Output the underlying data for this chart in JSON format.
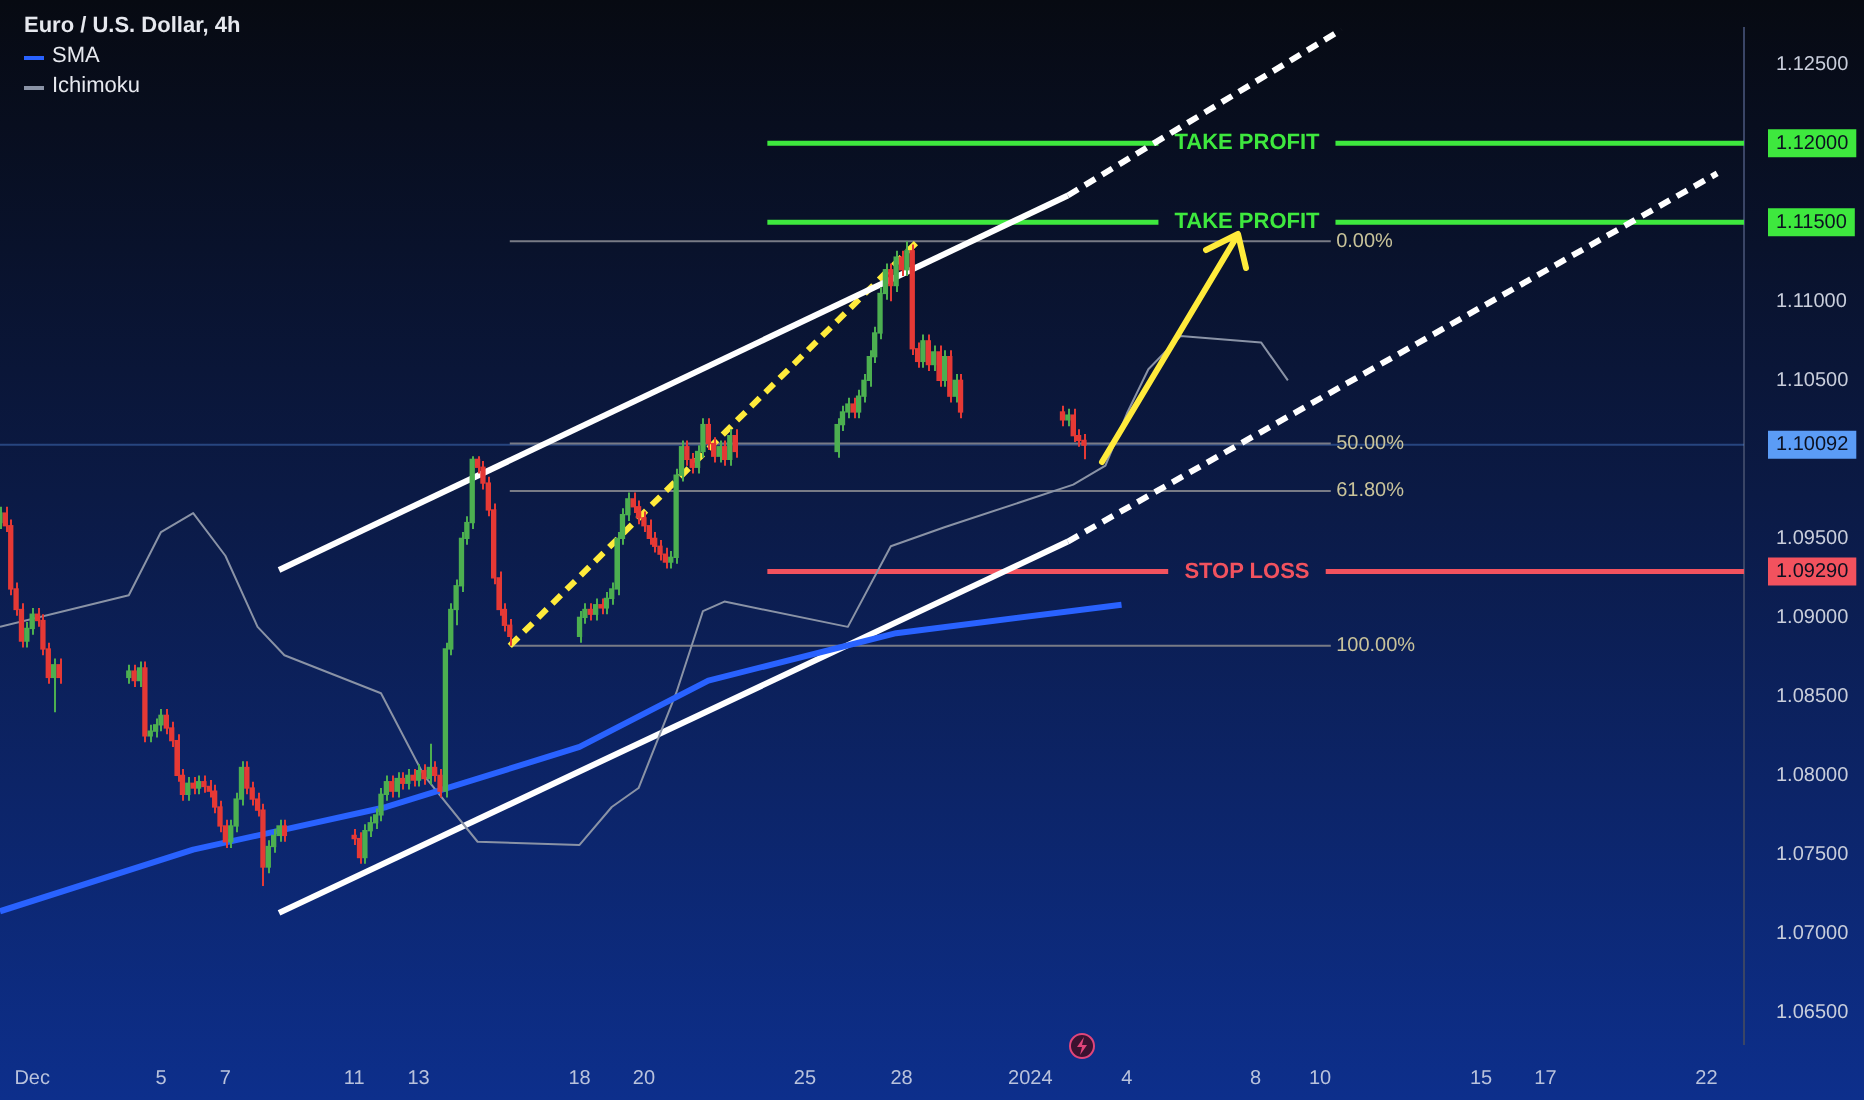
{
  "chart_data": {
    "type": "candlestick",
    "title": "Euro / U.S. Dollar, 4h",
    "legend": "top left",
    "x": [
      "2023-11-30T00:00",
      "2023-11-30T04:00",
      "2023-11-30T08:00",
      "2023-11-30T12:00",
      "2023-11-30T16:00",
      "2023-11-30T20:00",
      "2023-12-01T00:00",
      "2023-12-01T04:00",
      "2023-12-01T08:00",
      "2023-12-01T12:00",
      "2023-12-01T16:00",
      "2023-12-01T20:00",
      "2023-12-04T00:00",
      "2023-12-04T04:00",
      "2023-12-04T08:00",
      "2023-12-04T12:00",
      "2023-12-04T16:00",
      "2023-12-04T20:00",
      "2023-12-05T00:00",
      "2023-12-05T04:00",
      "2023-12-05T08:00",
      "2023-12-05T12:00",
      "2023-12-05T16:00",
      "2023-12-05T20:00",
      "2023-12-06T00:00",
      "2023-12-06T04:00",
      "2023-12-06T08:00",
      "2023-12-06T12:00",
      "2023-12-06T16:00",
      "2023-12-06T20:00",
      "2023-12-07T00:00",
      "2023-12-07T04:00",
      "2023-12-07T08:00",
      "2023-12-07T12:00",
      "2023-12-07T16:00",
      "2023-12-07T20:00",
      "2023-12-08T00:00",
      "2023-12-08T04:00",
      "2023-12-08T08:00",
      "2023-12-08T12:00",
      "2023-12-08T16:00",
      "2023-12-08T20:00",
      "2023-12-11T00:00",
      "2023-12-11T04:00",
      "2023-12-11T08:00",
      "2023-12-11T12:00",
      "2023-12-11T16:00",
      "2023-12-11T20:00",
      "2023-12-12T00:00",
      "2023-12-12T04:00",
      "2023-12-12T08:00",
      "2023-12-12T12:00",
      "2023-12-12T16:00",
      "2023-12-12T20:00",
      "2023-12-13T00:00",
      "2023-12-13T04:00",
      "2023-12-13T08:00",
      "2023-12-13T12:00",
      "2023-12-13T16:00",
      "2023-12-13T20:00",
      "2023-12-14T00:00",
      "2023-12-14T04:00",
      "2023-12-14T08:00",
      "2023-12-14T12:00",
      "2023-12-14T16:00",
      "2023-12-14T20:00",
      "2023-12-15T00:00",
      "2023-12-15T04:00",
      "2023-12-15T08:00",
      "2023-12-15T12:00",
      "2023-12-15T16:00",
      "2023-12-15T20:00",
      "2023-12-18T00:00",
      "2023-12-18T04:00",
      "2023-12-18T08:00",
      "2023-12-18T12:00",
      "2023-12-18T16:00",
      "2023-12-18T20:00",
      "2023-12-19T00:00",
      "2023-12-19T04:00",
      "2023-12-19T08:00",
      "2023-12-19T12:00",
      "2023-12-19T16:00",
      "2023-12-19T20:00",
      "2023-12-20T00:00",
      "2023-12-20T04:00",
      "2023-12-20T08:00",
      "2023-12-20T12:00",
      "2023-12-20T16:00",
      "2023-12-20T20:00",
      "2023-12-21T00:00",
      "2023-12-21T04:00",
      "2023-12-21T08:00",
      "2023-12-21T12:00",
      "2023-12-21T16:00",
      "2023-12-21T20:00",
      "2023-12-22T00:00",
      "2023-12-22T04:00",
      "2023-12-22T08:00",
      "2023-12-22T12:00",
      "2023-12-22T16:00",
      "2023-12-22T20:00",
      "2023-12-26T00:00",
      "2023-12-26T04:00",
      "2023-12-26T08:00",
      "2023-12-26T12:00",
      "2023-12-26T16:00",
      "2023-12-26T20:00",
      "2023-12-27T00:00",
      "2023-12-27T04:00",
      "2023-12-27T08:00",
      "2023-12-27T12:00",
      "2023-12-27T16:00",
      "2023-12-27T20:00",
      "2023-12-28T00:00",
      "2023-12-28T04:00",
      "2023-12-28T08:00",
      "2023-12-28T12:00",
      "2023-12-28T16:00",
      "2023-12-28T20:00",
      "2023-12-29T00:00",
      "2023-12-29T04:00",
      "2023-12-29T08:00",
      "2023-12-29T12:00",
      "2023-12-29T16:00",
      "2023-12-29T20:00",
      "2024-01-02T00:00",
      "2024-01-02T04:00",
      "2024-01-02T08:00",
      "2024-01-02T12:00",
      "2024-01-02T16:00"
    ],
    "ohlc": [
      [
        1.096,
        1.097,
        1.0956,
        1.0966
      ],
      [
        1.0966,
        1.097,
        1.0954,
        1.0958
      ],
      [
        1.0958,
        1.0962,
        1.0914,
        1.0918
      ],
      [
        1.0918,
        1.0922,
        1.0901,
        1.0905
      ],
      [
        1.0905,
        1.0909,
        1.0881,
        1.0885
      ],
      [
        1.0885,
        1.0897,
        1.0881,
        1.0893
      ],
      [
        1.0893,
        1.0906,
        1.0889,
        1.0902
      ],
      [
        1.0902,
        1.0906,
        1.0894,
        1.0898
      ],
      [
        1.0898,
        1.0902,
        1.0876,
        1.088
      ],
      [
        1.088,
        1.0884,
        1.0858,
        1.0862
      ],
      [
        1.0862,
        1.0874,
        1.084,
        1.087
      ],
      [
        1.087,
        1.0874,
        1.0858,
        1.0862
      ],
      [
        1.0862,
        1.087,
        1.0858,
        1.0866
      ],
      [
        1.0866,
        1.087,
        1.0856,
        1.086
      ],
      [
        1.086,
        1.0872,
        1.0856,
        1.0868
      ],
      [
        1.0868,
        1.0872,
        1.0821,
        1.0825
      ],
      [
        1.0825,
        1.0832,
        1.0821,
        1.0828
      ],
      [
        1.0828,
        1.0836,
        1.0824,
        1.0832
      ],
      [
        1.0832,
        1.0842,
        1.0828,
        1.0838
      ],
      [
        1.0838,
        1.0842,
        1.0826,
        1.083
      ],
      [
        1.083,
        1.0834,
        1.0818,
        1.0822
      ],
      [
        1.0822,
        1.0826,
        1.0796,
        1.08
      ],
      [
        1.08,
        1.0804,
        1.0784,
        1.0788
      ],
      [
        1.0788,
        1.0799,
        1.0784,
        1.0795
      ],
      [
        1.0795,
        1.0799,
        1.0788,
        1.0792
      ],
      [
        1.0792,
        1.08,
        1.0788,
        1.0796
      ],
      [
        1.0796,
        1.08,
        1.0789,
        1.0793
      ],
      [
        1.0793,
        1.0797,
        1.0786,
        1.079
      ],
      [
        1.079,
        1.0794,
        1.0776,
        1.078
      ],
      [
        1.078,
        1.0784,
        1.0764,
        1.0768
      ],
      [
        1.0768,
        1.0772,
        1.0754,
        1.0758
      ],
      [
        1.0758,
        1.0772,
        1.0754,
        1.0768
      ],
      [
        1.0768,
        1.0789,
        1.0764,
        1.0785
      ],
      [
        1.0785,
        1.0809,
        1.0781,
        1.0805
      ],
      [
        1.0805,
        1.0809,
        1.0788,
        1.0792
      ],
      [
        1.0792,
        1.0796,
        1.0781,
        1.0785
      ],
      [
        1.0785,
        1.0789,
        1.0774,
        1.0778
      ],
      [
        1.0778,
        1.0782,
        1.073,
        1.0742
      ],
      [
        1.0742,
        1.0759,
        1.0738,
        1.0755
      ],
      [
        1.0755,
        1.0766,
        1.0751,
        1.0762
      ],
      [
        1.0762,
        1.0772,
        1.0758,
        1.0768
      ],
      [
        1.0768,
        1.0772,
        1.0758,
        1.0762
      ],
      [
        1.0762,
        1.0766,
        1.0756,
        1.076
      ],
      [
        1.076,
        1.0764,
        1.0744,
        1.0748
      ],
      [
        1.0748,
        1.0769,
        1.0744,
        1.0765
      ],
      [
        1.0765,
        1.0774,
        1.0761,
        1.077
      ],
      [
        1.077,
        1.0779,
        1.0766,
        1.0775
      ],
      [
        1.0775,
        1.0792,
        1.0771,
        1.0788
      ],
      [
        1.0788,
        1.08,
        1.0784,
        1.0796
      ],
      [
        1.0796,
        1.08,
        1.0786,
        1.079
      ],
      [
        1.079,
        1.0802,
        1.0786,
        1.0798
      ],
      [
        1.0798,
        1.0802,
        1.0791,
        1.0795
      ],
      [
        1.0795,
        1.0804,
        1.0791,
        1.08
      ],
      [
        1.08,
        1.0804,
        1.0793,
        1.0797
      ],
      [
        1.0797,
        1.0807,
        1.0793,
        1.0803
      ],
      [
        1.0803,
        1.0807,
        1.0794,
        1.0798
      ],
      [
        1.0798,
        1.082,
        1.0794,
        1.0805
      ],
      [
        1.0805,
        1.0809,
        1.0796,
        1.08
      ],
      [
        1.08,
        1.0804,
        1.0786,
        1.079
      ],
      [
        1.079,
        1.0884,
        1.0786,
        1.088
      ],
      [
        1.088,
        1.0909,
        1.0876,
        1.0905
      ],
      [
        1.0905,
        1.0924,
        1.0895,
        1.092
      ],
      [
        1.092,
        1.0954,
        1.0916,
        1.095
      ],
      [
        1.095,
        1.0964,
        1.0946,
        1.096
      ],
      [
        1.096,
        1.1002,
        1.0956,
        1.1
      ],
      [
        1.1,
        1.1002,
        1.0991,
        1.0995
      ],
      [
        1.0995,
        1.0999,
        1.0981,
        1.0985
      ],
      [
        1.0985,
        1.0989,
        1.0964,
        1.0968
      ],
      [
        1.0968,
        1.0972,
        1.0921,
        1.0925
      ],
      [
        1.0925,
        1.0929,
        1.0901,
        1.0905
      ],
      [
        1.0905,
        1.0909,
        1.0891,
        1.0895
      ],
      [
        1.0895,
        1.0899,
        1.0882,
        1.0888
      ],
      [
        1.0888,
        1.0904,
        1.0884,
        1.09
      ],
      [
        1.09,
        1.0909,
        1.0896,
        1.0905
      ],
      [
        1.0905,
        1.0909,
        1.0898,
        1.0902
      ],
      [
        1.0902,
        1.0912,
        1.0898,
        1.0908
      ],
      [
        1.0908,
        1.0912,
        1.0902,
        1.0906
      ],
      [
        1.0906,
        1.0916,
        1.0902,
        1.0912
      ],
      [
        1.0912,
        1.0922,
        1.0908,
        1.0918
      ],
      [
        1.0918,
        1.0954,
        1.0914,
        1.095
      ],
      [
        1.095,
        1.0969,
        1.0946,
        1.0965
      ],
      [
        1.0965,
        1.0979,
        1.0961,
        1.0975
      ],
      [
        1.0975,
        1.0979,
        1.0966,
        1.097
      ],
      [
        1.097,
        1.0974,
        1.0959,
        1.0963
      ],
      [
        1.0963,
        1.0967,
        1.0954,
        1.0958
      ],
      [
        1.0958,
        1.0962,
        1.0946,
        1.095
      ],
      [
        1.095,
        1.0954,
        1.0941,
        1.0945
      ],
      [
        1.0945,
        1.0949,
        1.0936,
        1.094
      ],
      [
        1.094,
        1.0944,
        1.0931,
        1.0935
      ],
      [
        1.0935,
        1.0942,
        1.0931,
        1.0938
      ],
      [
        1.0938,
        1.0994,
        1.0934,
        1.099
      ],
      [
        1.099,
        1.1012,
        1.0986,
        1.1008
      ],
      [
        1.1008,
        1.1012,
        1.0996,
        1.1
      ],
      [
        1.1,
        1.1004,
        1.0991,
        1.0995
      ],
      [
        1.0995,
        1.1009,
        1.0991,
        1.1005
      ],
      [
        1.1005,
        1.1026,
        1.1001,
        1.1022
      ],
      [
        1.1022,
        1.1026,
        1.1006,
        1.101
      ],
      [
        1.101,
        1.1014,
        1.0998,
        1.1002
      ],
      [
        1.1002,
        1.1012,
        1.0998,
        1.1008
      ],
      [
        1.1008,
        1.1012,
        1.0996,
        1.1
      ],
      [
        1.1,
        1.1019,
        1.0996,
        1.1015
      ],
      [
        1.1015,
        1.1019,
        1.1001,
        1.1005
      ],
      [
        1.1005,
        1.1026,
        1.1001,
        1.1022
      ],
      [
        1.1022,
        1.1034,
        1.1018,
        1.103
      ],
      [
        1.103,
        1.1039,
        1.1026,
        1.1035
      ],
      [
        1.1035,
        1.1039,
        1.1026,
        1.103
      ],
      [
        1.103,
        1.1044,
        1.1026,
        1.104
      ],
      [
        1.104,
        1.1054,
        1.1036,
        1.105
      ],
      [
        1.105,
        1.1069,
        1.1046,
        1.1065
      ],
      [
        1.1065,
        1.1084,
        1.1061,
        1.108
      ],
      [
        1.108,
        1.1109,
        1.1076,
        1.1105
      ],
      [
        1.1105,
        1.1124,
        1.1101,
        1.112
      ],
      [
        1.112,
        1.1124,
        1.11,
        1.111
      ],
      [
        1.111,
        1.1132,
        1.1106,
        1.1128
      ],
      [
        1.1128,
        1.1132,
        1.1116,
        1.112
      ],
      [
        1.112,
        1.1138,
        1.1116,
        1.1132
      ],
      [
        1.1132,
        1.1136,
        1.1066,
        1.107
      ],
      [
        1.107,
        1.1074,
        1.1058,
        1.1062
      ],
      [
        1.1062,
        1.1079,
        1.1058,
        1.1075
      ],
      [
        1.1075,
        1.1079,
        1.1056,
        1.106
      ],
      [
        1.106,
        1.1072,
        1.1056,
        1.1068
      ],
      [
        1.1068,
        1.1072,
        1.1046,
        1.105
      ],
      [
        1.105,
        1.1069,
        1.1046,
        1.1065
      ],
      [
        1.1065,
        1.1069,
        1.1036,
        1.104
      ],
      [
        1.104,
        1.1054,
        1.1036,
        1.105
      ],
      [
        1.105,
        1.1054,
        1.1026,
        1.103
      ],
      [
        1.103,
        1.1034,
        1.1021,
        1.1025
      ],
      [
        1.1025,
        1.1032,
        1.1021,
        1.1028
      ],
      [
        1.1028,
        1.1032,
        1.1011,
        1.1015
      ],
      [
        1.1015,
        1.1019,
        1.1008,
        1.1012
      ],
      [
        1.1012,
        1.1016,
        1.1,
        1.1009
      ]
    ],
    "colors": [
      "#4caf50",
      "#e53935",
      "#e53935",
      "#e53935",
      "#e53935",
      "#4caf50",
      "#4caf50",
      "#e53935",
      "#e53935",
      "#e53935",
      "#4caf50",
      "#e53935",
      "#4caf50",
      "#e53935",
      "#4caf50",
      "#e53935",
      "#4caf50",
      "#4caf50",
      "#4caf50",
      "#e53935",
      "#e53935",
      "#e53935",
      "#e53935",
      "#4caf50",
      "#e53935",
      "#4caf50",
      "#e53935",
      "#e53935",
      "#e53935",
      "#e53935",
      "#e53935",
      "#4caf50",
      "#4caf50",
      "#4caf50",
      "#e53935",
      "#e53935",
      "#e53935",
      "#e53935",
      "#4caf50",
      "#4caf50",
      "#4caf50",
      "#e53935",
      "#e53935",
      "#e53935",
      "#4caf50",
      "#4caf50",
      "#4caf50",
      "#4caf50",
      "#4caf50",
      "#e53935",
      "#4caf50",
      "#e53935",
      "#4caf50",
      "#e53935",
      "#4caf50",
      "#e53935",
      "#4caf50",
      "#e53935",
      "#e53935",
      "#4caf50",
      "#4caf50",
      "#4caf50",
      "#4caf50",
      "#4caf50",
      "#4caf50",
      "#e53935",
      "#e53935",
      "#e53935",
      "#e53935",
      "#e53935",
      "#e53935",
      "#e53935",
      "#4caf50",
      "#4caf50",
      "#e53935",
      "#4caf50",
      "#e53935",
      "#4caf50",
      "#4caf50",
      "#4caf50",
      "#4caf50",
      "#4caf50",
      "#e53935",
      "#e53935",
      "#e53935",
      "#e53935",
      "#e53935",
      "#e53935",
      "#e53935",
      "#4caf50",
      "#4caf50",
      "#4caf50",
      "#e53935",
      "#e53935",
      "#4caf50",
      "#4caf50",
      "#e53935",
      "#e53935",
      "#4caf50",
      "#e53935",
      "#4caf50",
      "#e53935",
      "#4caf50",
      "#4caf50",
      "#4caf50",
      "#e53935",
      "#4caf50",
      "#4caf50",
      "#4caf50",
      "#4caf50",
      "#4caf50",
      "#4caf50",
      "#e53935",
      "#4caf50",
      "#e53935",
      "#4caf50",
      "#e53935",
      "#e53935",
      "#4caf50",
      "#e53935",
      "#4caf50",
      "#e53935",
      "#4caf50",
      "#e53935",
      "#4caf50",
      "#e53935",
      "#e53935",
      "#4caf50",
      "#e53935",
      "#e53935",
      "#e53935"
    ],
    "series": [
      {
        "name": "SMA",
        "type": "line",
        "color": "#2962ff",
        "x": [
          "2023-11-30T00:00",
          "2023-12-06T00:00",
          "2023-12-12T00:00",
          "2023-12-18T00:00",
          "2023-12-22T00:00",
          "2023-12-27T20:00",
          "2024-01-03T20:00"
        ],
        "values": [
          1.0714,
          1.0753,
          1.078,
          1.0818,
          1.086,
          1.089,
          1.0908
        ]
      },
      {
        "name": "Ichimoku",
        "type": "line",
        "color": "#8a93a6",
        "x": [
          "2023-11-30T00:00",
          "2023-12-04T00:00",
          "2023-12-05T00:00",
          "2023-12-06T00:00",
          "2023-12-07T00:00",
          "2023-12-08T00:00",
          "2023-12-08T20:00",
          "2023-12-11T20:00",
          "2023-12-13T04:00",
          "2023-12-14T20:00",
          "2023-12-18T00:00",
          "2023-12-19T00:00",
          "2023-12-19T20:00",
          "2023-12-21T00:00",
          "2023-12-21T20:00",
          "2023-12-22T12:00",
          "2023-12-26T08:00",
          "2023-12-27T16:00",
          "2023-12-29T08:00",
          "2024-01-02T08:00",
          "2024-01-03T08:00",
          "2024-01-04T00:00",
          "2024-01-04T16:00",
          "2024-01-05T16:00",
          "2024-01-08T04:00",
          "2024-01-09T00:00"
        ],
        "values": [
          1.0894,
          1.0914,
          1.0954,
          1.0966,
          1.0939,
          1.0894,
          1.0876,
          1.0852,
          1.08,
          1.0758,
          1.0756,
          1.078,
          1.0792,
          1.0852,
          1.0904,
          1.091,
          1.0894,
          1.0945,
          1.0957,
          1.0984,
          1.0996,
          1.1029,
          1.1057,
          1.1078,
          1.1074,
          1.105
        ]
      },
      {
        "type": "line",
        "color": "#ffffff",
        "x": [
          "2023-12-08T16:00",
          "2024-01-02T04:00"
        ],
        "values": [
          1.093,
          1.1167
        ]
      },
      {
        "type": "line",
        "color": "#ffffff",
        "line_style": "dashed",
        "x": [
          "2024-01-02T04:00",
          "2024-01-10T16:00"
        ],
        "values": [
          1.1167,
          1.1272
        ]
      },
      {
        "type": "line",
        "color": "#ffffff",
        "x": [
          "2023-12-08T16:00",
          "2024-01-02T04:00"
        ],
        "values": [
          1.0713,
          1.0948
        ]
      },
      {
        "type": "line",
        "color": "#ffffff",
        "line_style": "dashed",
        "x": [
          "2024-01-02T04:00",
          "2024-01-22T08:00"
        ],
        "values": [
          1.0948,
          1.1181
        ]
      },
      {
        "type": "line",
        "color": "#ffeb3b",
        "line_style": "dashed",
        "x": [
          "2023-12-15T20:00",
          "2023-12-28T12:00"
        ],
        "values": [
          1.0882,
          1.1138
        ]
      },
      {
        "type": "line",
        "color": "#787b86",
        "x": [
          "2023-12-15T20:00",
          "2024-01-10T08:00"
        ],
        "values": [
          1.1138,
          1.1138
        ]
      },
      {
        "type": "line",
        "color": "#787b86",
        "x": [
          "2023-12-15T20:00",
          "2024-01-10T08:00"
        ],
        "values": [
          1.101,
          1.101
        ]
      },
      {
        "type": "line",
        "color": "#787b86",
        "x": [
          "2023-12-15T20:00",
          "2024-01-10T08:00"
        ],
        "values": [
          1.098,
          1.098
        ]
      },
      {
        "type": "line",
        "color": "#787b86",
        "x": [
          "2023-12-15T20:00",
          "2024-01-10T08:00"
        ],
        "values": [
          1.0882,
          1.0882
        ]
      }
    ],
    "ref_lines": [
      {
        "axis": "y",
        "value": 1.12,
        "label": "TAKE PROFIT",
        "color": "#3ee83e"
      },
      {
        "axis": "y",
        "value": 1.115,
        "label": "TAKE PROFIT",
        "color": "#3ee83e"
      },
      {
        "axis": "y",
        "value": 1.0929,
        "label": "STOP LOSS",
        "color": "#f2525e"
      },
      {
        "axis": "y",
        "value": 1.10092,
        "color": "#5b9cf6"
      }
    ],
    "annotations": [
      {
        "text": "0.00%",
        "x": "2024-01-10T12:00",
        "y": 1.1138
      },
      {
        "text": "50.00%",
        "x": "2024-01-10T12:00",
        "y": 1.101
      },
      {
        "text": "61.80%",
        "x": "2024-01-10T12:00",
        "y": 1.098
      },
      {
        "text": "100.00%",
        "x": "2024-01-10T12:00",
        "y": 1.0882
      }
    ],
    "xlim": [
      "2023-11-30T00:00",
      "2024-01-23T04:00"
    ],
    "xticks": [
      {
        "value": "2023-12-01",
        "label": "Dec"
      },
      {
        "value": "2023-12-05",
        "label": "5"
      },
      {
        "value": "2023-12-07",
        "label": "7"
      },
      {
        "value": "2023-12-11",
        "label": "11"
      },
      {
        "value": "2023-12-13",
        "label": "13"
      },
      {
        "value": "2023-12-18",
        "label": "18"
      },
      {
        "value": "2023-12-20",
        "label": "20"
      },
      {
        "value": "2023-12-25",
        "label": "25"
      },
      {
        "value": "2023-12-28",
        "label": "28"
      },
      {
        "value": "2024-01-01",
        "label": "2024"
      },
      {
        "value": "2024-01-04",
        "label": "4"
      },
      {
        "value": "2024-01-08",
        "label": "8"
      },
      {
        "value": "2024-01-10",
        "label": "10"
      },
      {
        "value": "2024-01-15",
        "label": "15"
      },
      {
        "value": "2024-01-17",
        "label": "17"
      },
      {
        "value": "2024-01-22",
        "label": "22"
      }
    ],
    "ylim": [
      1.063,
      1.1273
    ],
    "yticks": [
      {
        "value": 1.065,
        "label": "1.06500"
      },
      {
        "value": 1.07,
        "label": "1.07000"
      },
      {
        "value": 1.075,
        "label": "1.07500"
      },
      {
        "value": 1.08,
        "label": "1.08000"
      },
      {
        "value": 1.085,
        "label": "1.08500"
      },
      {
        "value": 1.09,
        "label": "1.09000"
      },
      {
        "value": 1.0929,
        "label": "1.09290"
      },
      {
        "value": 1.095,
        "label": "1.09500"
      },
      {
        "value": 1.10092,
        "label": "1.10092"
      },
      {
        "value": 1.105,
        "label": "1.10500"
      },
      {
        "value": 1.11,
        "label": "1.11000"
      },
      {
        "value": 1.115,
        "label": "1.11500"
      },
      {
        "value": 1.12,
        "label": "1.12000"
      },
      {
        "value": 1.125,
        "label": "1.12500"
      }
    ]
  }
}
